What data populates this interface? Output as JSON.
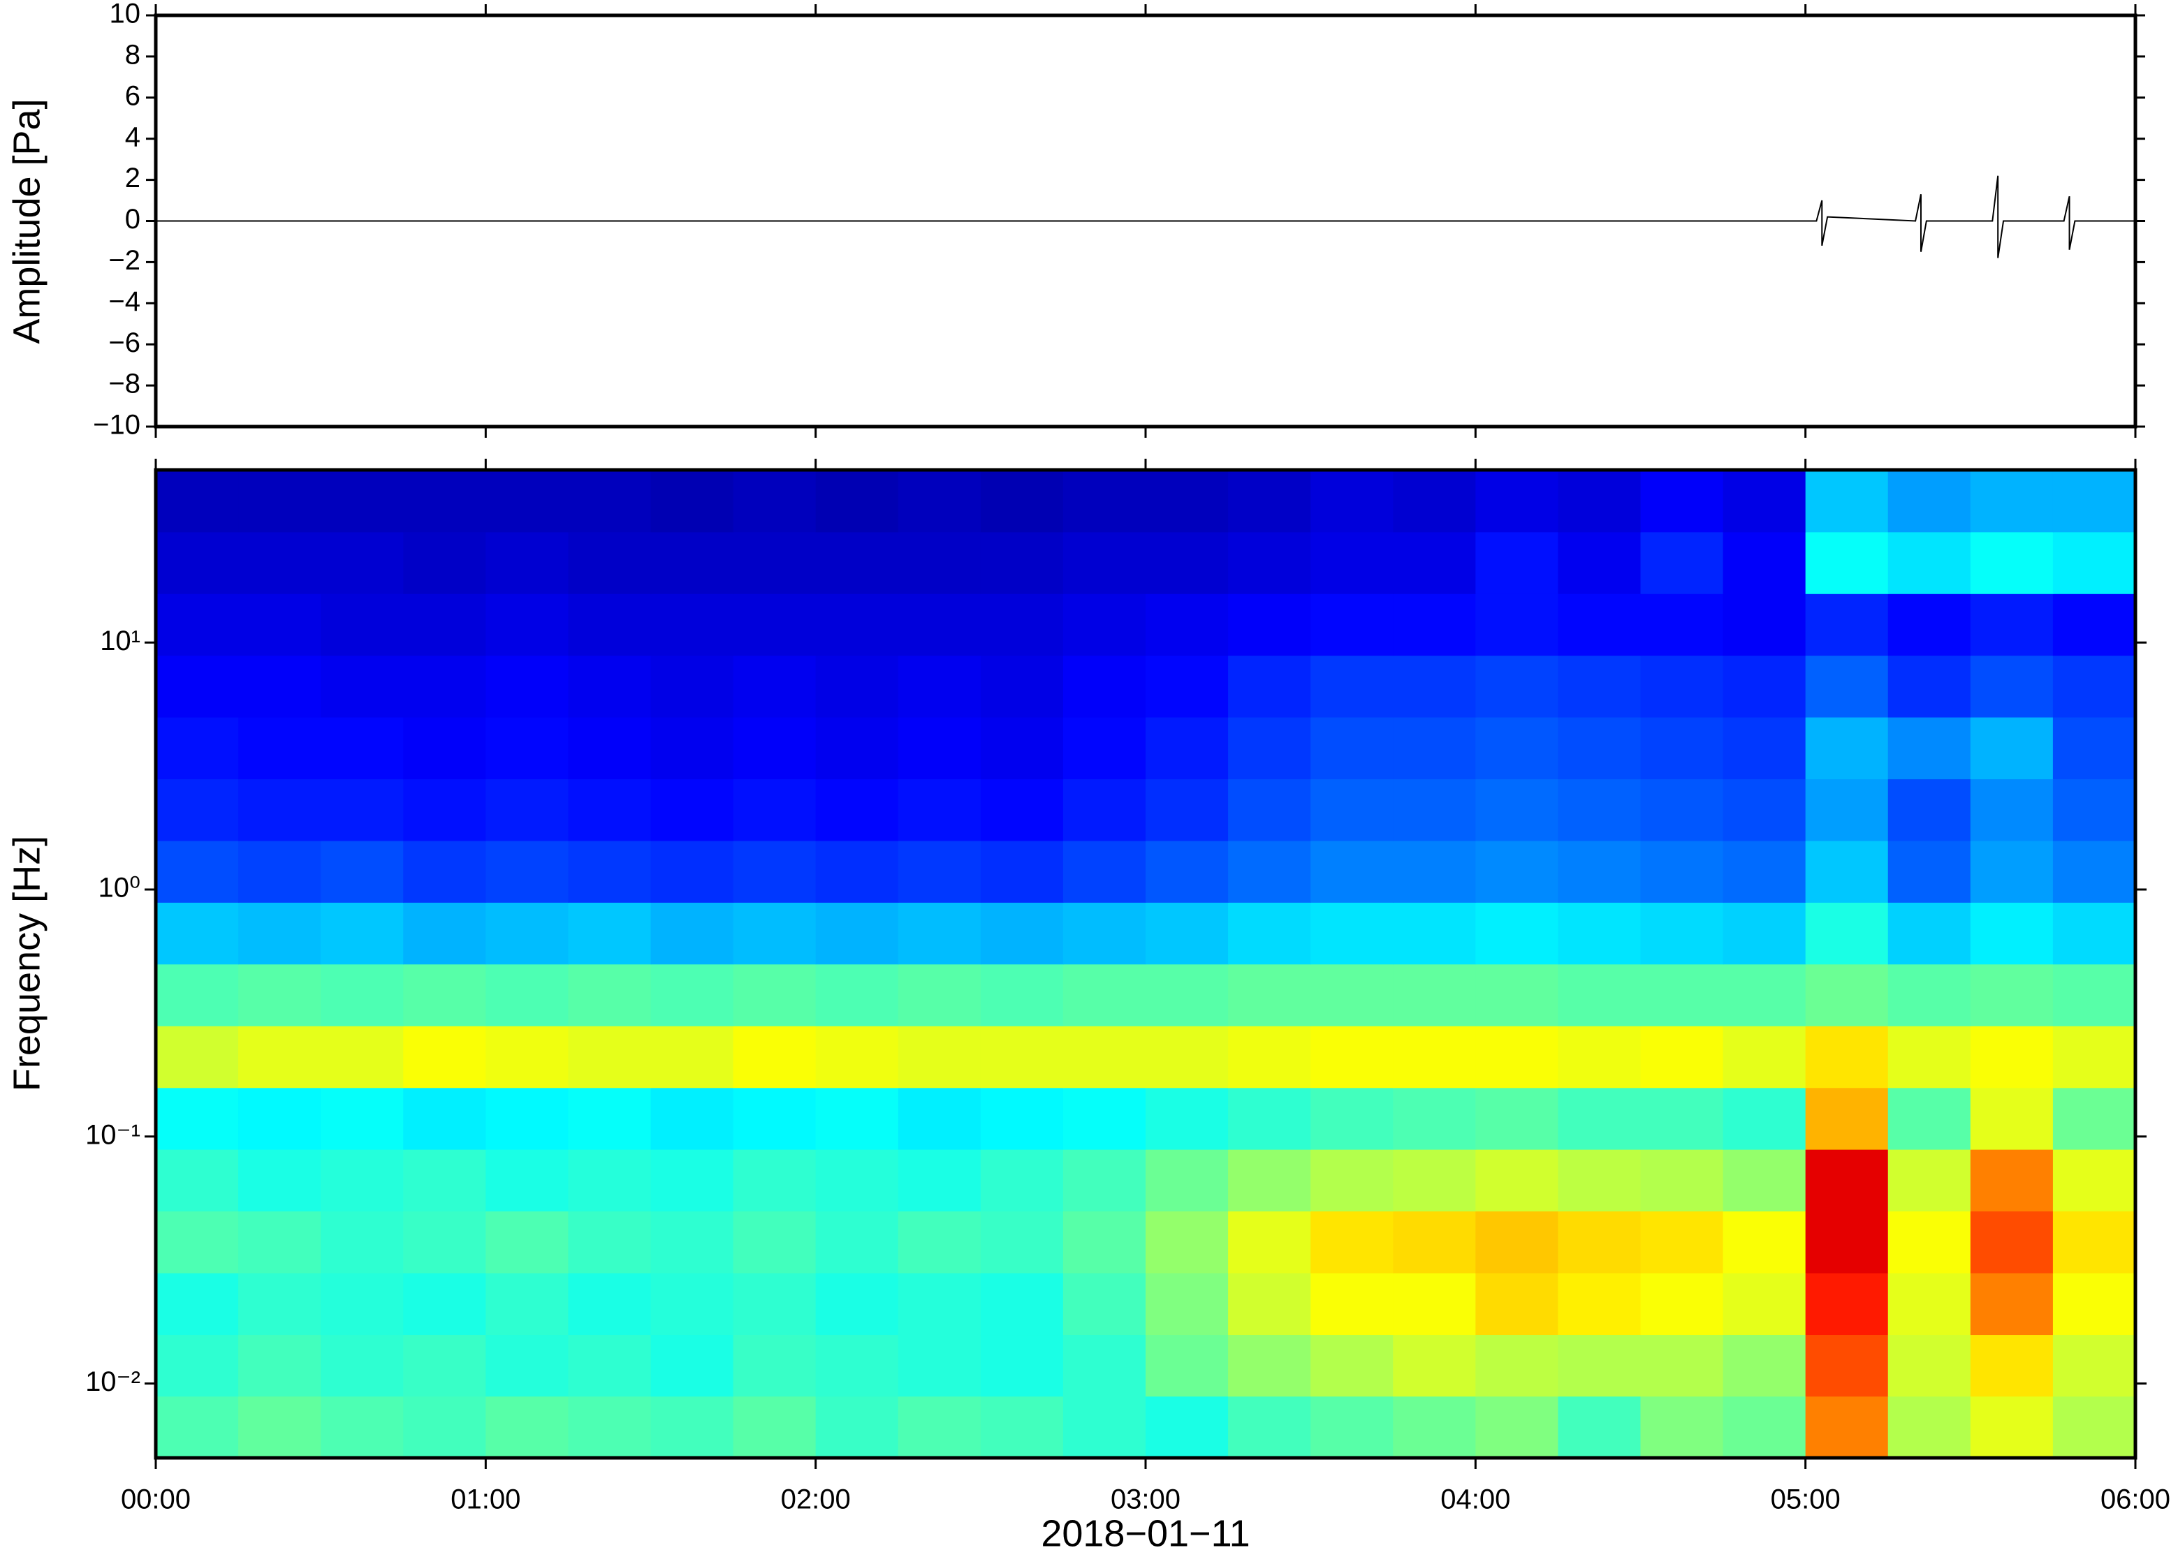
{
  "chart_data": [
    {
      "type": "line",
      "ylabel": "Amplitude [Pa]",
      "x": [
        "00:00",
        "01:00",
        "02:00",
        "03:00",
        "04:00",
        "04:50",
        "05:02",
        "05:03",
        "05:03",
        "05:04",
        "05:20",
        "05:21",
        "05:21",
        "05:22",
        "05:34",
        "05:35",
        "05:35",
        "05:36",
        "05:47",
        "05:48",
        "05:48",
        "05:49",
        "06:00"
      ],
      "values": [
        0,
        0,
        0,
        0,
        0,
        0,
        0,
        1.0,
        -1.2,
        0.2,
        0,
        1.3,
        -1.5,
        0,
        0,
        2.2,
        -1.8,
        0,
        0,
        1.2,
        -1.4,
        0,
        0
      ],
      "color": "#000000",
      "xlim": [
        "00:00",
        "06:00"
      ],
      "ylim": [
        -10,
        10
      ],
      "yticks": [
        {
          "value": -10,
          "label": "−10"
        },
        {
          "value": -8,
          "label": "−8"
        },
        {
          "value": -6,
          "label": "−6"
        },
        {
          "value": -4,
          "label": "−4"
        },
        {
          "value": -2,
          "label": "−2"
        },
        0,
        2,
        4,
        6,
        8,
        10
      ]
    },
    {
      "type": "heatmap",
      "ylabel": "Frequency [Hz]",
      "xlabel": "2018−01−11",
      "x_bins": [
        "00:00",
        "00:15",
        "00:30",
        "00:45",
        "01:00",
        "01:15",
        "01:30",
        "01:45",
        "02:00",
        "02:15",
        "02:30",
        "02:45",
        "03:00",
        "03:15",
        "03:30",
        "03:45",
        "04:00",
        "04:15",
        "04:30",
        "04:45",
        "05:00",
        "05:15",
        "05:30",
        "05:45",
        "06:00"
      ],
      "y_bins": [
        0.005,
        0.0089,
        0.0158,
        0.0281,
        0.05,
        0.0889,
        0.158,
        0.281,
        0.5,
        0.889,
        1.58,
        2.81,
        5,
        8.89,
        15.8,
        28.1,
        50
      ],
      "z": [
        [
          0.45,
          0.47,
          0.45,
          0.44,
          0.46,
          0.45,
          0.44,
          0.46,
          0.43,
          0.45,
          0.44,
          0.42,
          0.4,
          0.44,
          0.46,
          0.48,
          0.5,
          0.44,
          0.5,
          0.48,
          0.75,
          0.55,
          0.6,
          0.55
        ],
        [
          0.42,
          0.44,
          0.42,
          0.43,
          0.41,
          0.42,
          0.4,
          0.43,
          0.42,
          0.41,
          0.4,
          0.42,
          0.48,
          0.52,
          0.55,
          0.58,
          0.56,
          0.55,
          0.55,
          0.52,
          0.8,
          0.58,
          0.65,
          0.58
        ],
        [
          0.4,
          0.42,
          0.41,
          0.4,
          0.42,
          0.4,
          0.41,
          0.42,
          0.4,
          0.41,
          0.4,
          0.44,
          0.5,
          0.58,
          0.62,
          0.62,
          0.66,
          0.64,
          0.62,
          0.6,
          0.85,
          0.6,
          0.75,
          0.62
        ],
        [
          0.45,
          0.44,
          0.42,
          0.43,
          0.45,
          0.43,
          0.42,
          0.44,
          0.42,
          0.44,
          0.43,
          0.46,
          0.52,
          0.6,
          0.65,
          0.66,
          0.68,
          0.66,
          0.65,
          0.62,
          0.9,
          0.62,
          0.8,
          0.65
        ],
        [
          0.42,
          0.4,
          0.41,
          0.42,
          0.4,
          0.41,
          0.4,
          0.42,
          0.41,
          0.4,
          0.42,
          0.44,
          0.48,
          0.52,
          0.55,
          0.56,
          0.58,
          0.56,
          0.55,
          0.52,
          0.9,
          0.58,
          0.75,
          0.6
        ],
        [
          0.38,
          0.37,
          0.38,
          0.36,
          0.37,
          0.38,
          0.36,
          0.37,
          0.38,
          0.36,
          0.37,
          0.38,
          0.4,
          0.42,
          0.44,
          0.45,
          0.46,
          0.44,
          0.44,
          0.42,
          0.7,
          0.46,
          0.6,
          0.48
        ],
        [
          0.58,
          0.6,
          0.6,
          0.62,
          0.61,
          0.6,
          0.6,
          0.62,
          0.61,
          0.6,
          0.6,
          0.6,
          0.6,
          0.61,
          0.62,
          0.62,
          0.62,
          0.61,
          0.62,
          0.6,
          0.65,
          0.6,
          0.62,
          0.6
        ],
        [
          0.45,
          0.46,
          0.45,
          0.46,
          0.45,
          0.46,
          0.45,
          0.46,
          0.45,
          0.46,
          0.45,
          0.46,
          0.46,
          0.47,
          0.47,
          0.47,
          0.47,
          0.46,
          0.46,
          0.46,
          0.48,
          0.46,
          0.47,
          0.46
        ],
        [
          0.32,
          0.31,
          0.32,
          0.3,
          0.31,
          0.32,
          0.3,
          0.31,
          0.3,
          0.31,
          0.3,
          0.31,
          0.32,
          0.34,
          0.35,
          0.35,
          0.36,
          0.35,
          0.34,
          0.33,
          0.4,
          0.33,
          0.36,
          0.34
        ],
        [
          0.2,
          0.19,
          0.2,
          0.18,
          0.19,
          0.18,
          0.17,
          0.18,
          0.17,
          0.18,
          0.17,
          0.19,
          0.21,
          0.23,
          0.25,
          0.25,
          0.26,
          0.25,
          0.24,
          0.23,
          0.32,
          0.22,
          0.28,
          0.25
        ],
        [
          0.16,
          0.15,
          0.15,
          0.14,
          0.15,
          0.14,
          0.13,
          0.14,
          0.13,
          0.14,
          0.13,
          0.15,
          0.17,
          0.2,
          0.22,
          0.22,
          0.23,
          0.22,
          0.21,
          0.2,
          0.28,
          0.2,
          0.26,
          0.22
        ],
        [
          0.14,
          0.13,
          0.13,
          0.12,
          0.13,
          0.12,
          0.11,
          0.12,
          0.11,
          0.12,
          0.11,
          0.13,
          0.15,
          0.18,
          0.2,
          0.2,
          0.21,
          0.2,
          0.19,
          0.18,
          0.3,
          0.26,
          0.3,
          0.2
        ],
        [
          0.12,
          0.12,
          0.11,
          0.11,
          0.12,
          0.11,
          0.1,
          0.11,
          0.1,
          0.11,
          0.1,
          0.12,
          0.13,
          0.16,
          0.18,
          0.18,
          0.19,
          0.18,
          0.17,
          0.16,
          0.22,
          0.17,
          0.2,
          0.18
        ],
        [
          0.1,
          0.1,
          0.09,
          0.09,
          0.1,
          0.09,
          0.09,
          0.09,
          0.09,
          0.09,
          0.09,
          0.1,
          0.11,
          0.12,
          0.13,
          0.13,
          0.14,
          0.13,
          0.13,
          0.12,
          0.16,
          0.13,
          0.15,
          0.13
        ],
        [
          0.08,
          0.08,
          0.08,
          0.07,
          0.08,
          0.07,
          0.07,
          0.07,
          0.07,
          0.07,
          0.07,
          0.08,
          0.08,
          0.09,
          0.1,
          0.1,
          0.14,
          0.11,
          0.16,
          0.12,
          0.38,
          0.35,
          0.38,
          0.36
        ],
        [
          0.06,
          0.06,
          0.06,
          0.06,
          0.06,
          0.06,
          0.05,
          0.06,
          0.05,
          0.06,
          0.05,
          0.06,
          0.06,
          0.07,
          0.09,
          0.08,
          0.1,
          0.09,
          0.12,
          0.1,
          0.32,
          0.28,
          0.3,
          0.3
        ]
      ],
      "colormap": "jet",
      "clim": [
        0,
        1
      ],
      "xlim": [
        "00:00",
        "06:00"
      ],
      "xticks": [
        "00:00",
        "01:00",
        "02:00",
        "03:00",
        "04:00",
        "05:00",
        "06:00"
      ],
      "ylim": [
        0.005,
        50
      ],
      "log_y": true,
      "yticks": [
        {
          "value": 0.01,
          "label": "10⁻²"
        },
        {
          "value": 0.1,
          "label": "10⁻¹"
        },
        {
          "value": 1,
          "label": "10⁰"
        },
        {
          "value": 10,
          "label": "10¹"
        }
      ]
    }
  ]
}
